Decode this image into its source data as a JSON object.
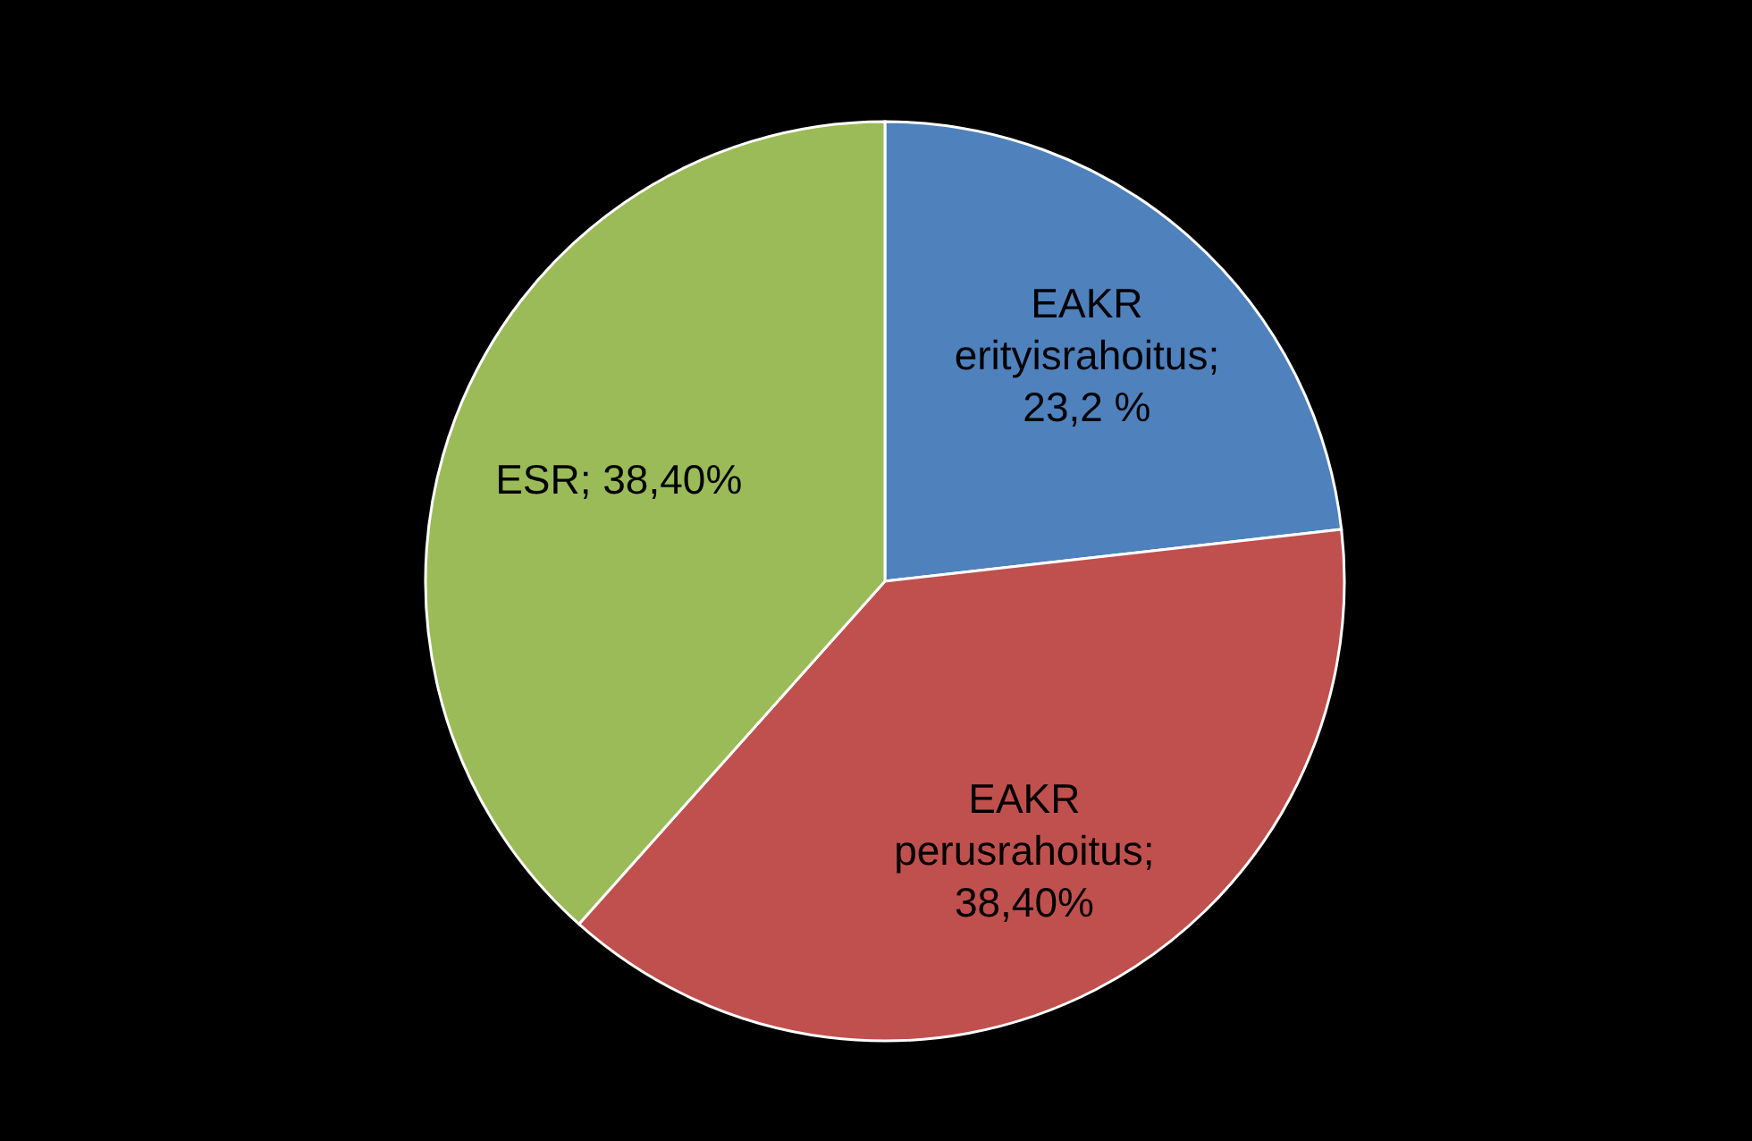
{
  "chart_data": {
    "type": "pie",
    "categories": [
      "EAKR erityisrahoitus",
      "EAKR perusrahoitus",
      "ESR"
    ],
    "values": [
      23.2,
      38.4,
      38.4
    ],
    "value_labels": [
      "; 23,2 %",
      "; 38,40%",
      "; 38,40%"
    ],
    "colors": [
      "#4f81bd",
      "#c0504d",
      "#9bbb59"
    ],
    "legend": false
  }
}
